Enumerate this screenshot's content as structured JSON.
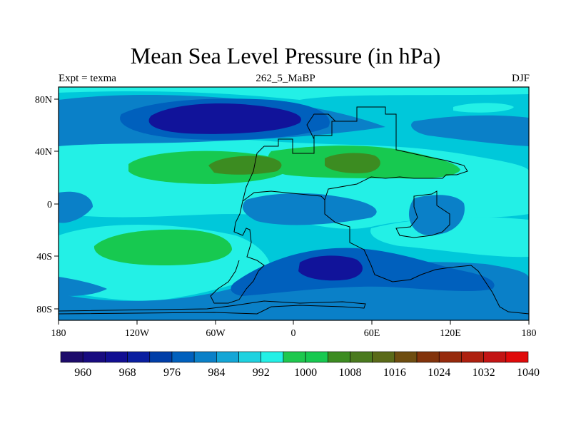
{
  "title": "Mean Sea Level Pressure (in hPa)",
  "left_label": "Expt = texma",
  "center_label": "262_5_MaBP",
  "right_label": "DJF",
  "x_ticks": [
    "180",
    "120W",
    "60W",
    "0",
    "60E",
    "120E",
    "180"
  ],
  "y_ticks": [
    "80N",
    "40N",
    "0",
    "40S",
    "80S"
  ],
  "colorbar": {
    "labels": [
      "960",
      "968",
      "976",
      "984",
      "992",
      "1000",
      "1008",
      "1016",
      "1024",
      "1032",
      "1040"
    ],
    "colors": [
      "#1d0b6b",
      "#180b80",
      "#110e92",
      "#0a1ea0",
      "#003ea8",
      "#0060bd",
      "#0a80c8",
      "#14a6d6",
      "#1ed2e0",
      "#23f0e6",
      "#1ec84e",
      "#17c950",
      "#3c8c21",
      "#4a7a1e",
      "#5a6a18",
      "#6e4d10",
      "#82330b",
      "#962a0c",
      "#ae200f",
      "#c31414",
      "#e00a0a"
    ]
  },
  "palette": {
    "background": "#00c8da",
    "cyan": "#23f0e6",
    "blue": "#0a80c8",
    "midblue": "#0060bd",
    "darkblue": "#11139a",
    "green": "#17c950",
    "olive": "#3c8c21"
  }
}
